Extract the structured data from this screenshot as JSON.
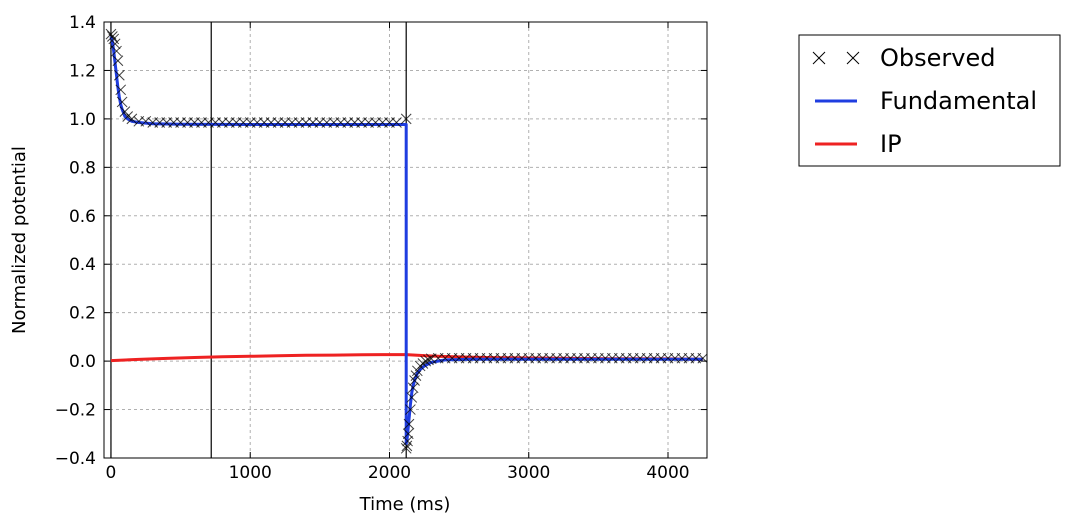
{
  "chart_data": {
    "type": "line",
    "xlabel": "Time (ms)",
    "ylabel": "Normalized potential",
    "xlim": [
      -50,
      4280
    ],
    "ylim": [
      -0.4,
      1.4
    ],
    "xticks": [
      0,
      1000,
      2000,
      3000,
      4000
    ],
    "yticks": [
      -0.4,
      -0.2,
      0.0,
      0.2,
      0.4,
      0.6,
      0.8,
      1.0,
      1.2,
      1.4
    ],
    "xtick_labels": [
      "0",
      "1000",
      "2000",
      "3000",
      "4000"
    ],
    "ytick_labels": [
      "−0.4",
      "−0.2",
      "0.0",
      "0.2",
      "0.4",
      "0.6",
      "0.8",
      "1.0",
      "1.2",
      "1.4"
    ],
    "grid": true,
    "legend_position": "outside-right-top",
    "vertical_lines": [
      0,
      720,
      2120
    ],
    "series": [
      {
        "name": "Observed",
        "kind": "markers",
        "marker": "x",
        "color": "#000000",
        "x": [
          0,
          10,
          20,
          30,
          40,
          50,
          60,
          70,
          80,
          100,
          120,
          150,
          200,
          250,
          300,
          350,
          400,
          450,
          500,
          550,
          600,
          650,
          700,
          750,
          800,
          850,
          900,
          950,
          1000,
          1050,
          1100,
          1150,
          1200,
          1250,
          1300,
          1350,
          1400,
          1450,
          1500,
          1550,
          1600,
          1650,
          1700,
          1750,
          1800,
          1850,
          1900,
          1950,
          2000,
          2050,
          2120,
          2120,
          2125,
          2130,
          2135,
          2140,
          2150,
          2160,
          2170,
          2180,
          2190,
          2200,
          2220,
          2240,
          2260,
          2280,
          2300,
          2350,
          2400,
          2450,
          2500,
          2550,
          2600,
          2650,
          2700,
          2750,
          2800,
          2850,
          2900,
          2950,
          3000,
          3050,
          3100,
          3150,
          3200,
          3250,
          3300,
          3350,
          3400,
          3450,
          3500,
          3550,
          3600,
          3650,
          3700,
          3750,
          3800,
          3850,
          3900,
          3950,
          4000,
          4050,
          4100,
          4150,
          4200,
          4250
        ],
        "y": [
          1.35,
          1.34,
          1.33,
          1.31,
          1.28,
          1.24,
          1.18,
          1.12,
          1.07,
          1.03,
          1.01,
          1.0,
          0.99,
          0.99,
          0.985,
          0.985,
          0.985,
          0.985,
          0.985,
          0.985,
          0.985,
          0.985,
          0.985,
          0.985,
          0.985,
          0.985,
          0.985,
          0.985,
          0.985,
          0.985,
          0.985,
          0.985,
          0.985,
          0.985,
          0.985,
          0.985,
          0.985,
          0.985,
          0.985,
          0.985,
          0.985,
          0.985,
          0.985,
          0.985,
          0.985,
          0.985,
          0.985,
          0.985,
          0.985,
          0.985,
          1.0,
          -0.36,
          -0.35,
          -0.33,
          -0.3,
          -0.26,
          -0.2,
          -0.15,
          -0.11,
          -0.08,
          -0.06,
          -0.04,
          -0.02,
          -0.01,
          0.0,
          0.005,
          0.01,
          0.012,
          0.012,
          0.012,
          0.012,
          0.012,
          0.012,
          0.012,
          0.012,
          0.012,
          0.012,
          0.012,
          0.012,
          0.012,
          0.012,
          0.012,
          0.012,
          0.012,
          0.012,
          0.012,
          0.012,
          0.012,
          0.012,
          0.012,
          0.012,
          0.012,
          0.012,
          0.012,
          0.012,
          0.012,
          0.012,
          0.012,
          0.012,
          0.012,
          0.012,
          0.012,
          0.012,
          0.012,
          0.012,
          0.012
        ]
      },
      {
        "name": "Fundamental",
        "kind": "line",
        "color": "#1f3de0",
        "x": [
          0,
          10,
          20,
          30,
          40,
          50,
          60,
          70,
          80,
          100,
          120,
          150,
          200,
          300,
          500,
          1000,
          1500,
          2000,
          2120,
          2120,
          2125,
          2130,
          2140,
          2150,
          2160,
          2170,
          2180,
          2200,
          2220,
          2250,
          2300,
          2400,
          2600,
          3000,
          3500,
          4000,
          4250
        ],
        "y": [
          1.34,
          1.32,
          1.28,
          1.23,
          1.18,
          1.13,
          1.09,
          1.06,
          1.04,
          1.01,
          1.0,
          0.99,
          0.985,
          0.98,
          0.978,
          0.977,
          0.977,
          0.977,
          0.977,
          -0.34,
          -0.33,
          -0.3,
          -0.24,
          -0.18,
          -0.13,
          -0.1,
          -0.08,
          -0.05,
          -0.035,
          -0.02,
          -0.005,
          0.005,
          0.008,
          0.008,
          0.008,
          0.008,
          0.008
        ]
      },
      {
        "name": "IP",
        "kind": "line",
        "color": "#ee2222",
        "x": [
          0,
          200,
          400,
          600,
          800,
          1000,
          1200,
          1400,
          1600,
          1800,
          2000,
          2120,
          2200,
          2300,
          2400,
          2600,
          2800,
          3000,
          3300,
          3600,
          4000,
          4250
        ],
        "y": [
          0.002,
          0.007,
          0.011,
          0.015,
          0.018,
          0.02,
          0.022,
          0.024,
          0.025,
          0.026,
          0.027,
          0.027,
          0.024,
          0.021,
          0.019,
          0.016,
          0.014,
          0.013,
          0.011,
          0.01,
          0.009,
          0.008
        ]
      }
    ]
  }
}
